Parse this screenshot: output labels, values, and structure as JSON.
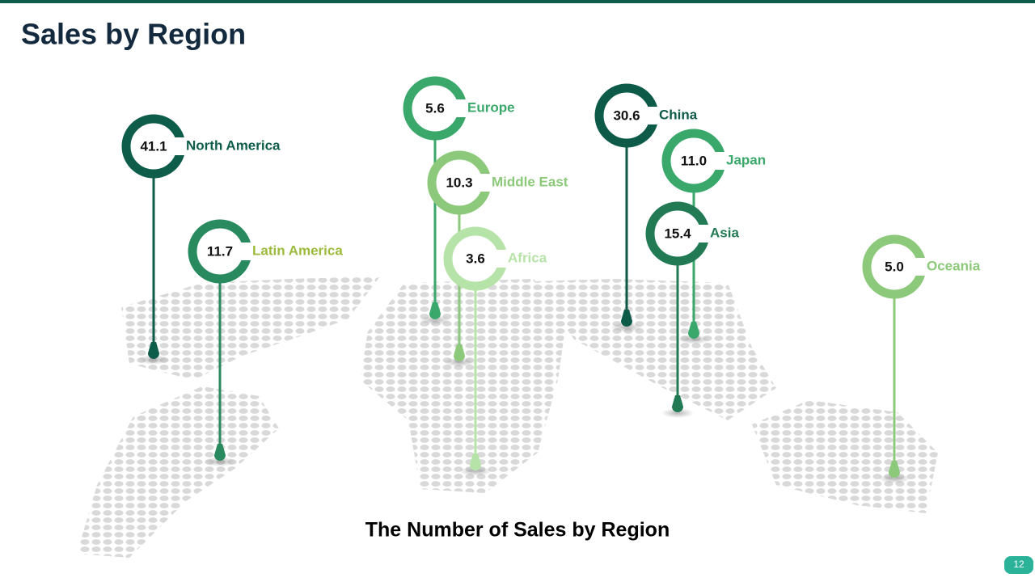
{
  "header": {
    "title": "Sales by Region"
  },
  "pins": [
    {
      "value": "41.1",
      "label": "North America"
    },
    {
      "value": "11.7",
      "label": "Latin America"
    },
    {
      "value": "5.6",
      "label": "Europe"
    },
    {
      "value": "10.3",
      "label": "Middle East"
    },
    {
      "value": "3.6",
      "label": "Africa"
    },
    {
      "value": "30.6",
      "label": "China"
    },
    {
      "value": "11.0",
      "label": "Japan"
    },
    {
      "value": "15.4",
      "label": "Asia"
    },
    {
      "value": "5.0",
      "label": "Oceania"
    }
  ],
  "caption": "The Number of Sales by Region",
  "page_number": "12"
}
